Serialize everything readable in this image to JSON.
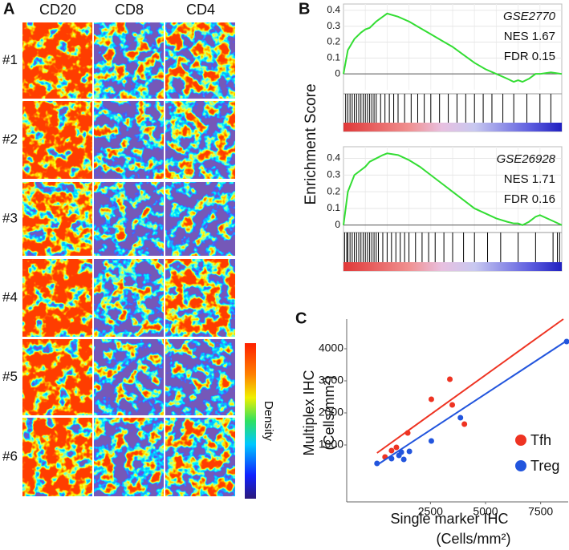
{
  "chart_data": [
    {
      "type": "heatmap",
      "panel": "A",
      "columns": [
        "CD20",
        "CD8",
        "CD4"
      ],
      "rows": [
        "#1",
        "#2",
        "#3",
        "#4",
        "#5",
        "#6"
      ],
      "colorbar_label": "Density"
    },
    {
      "type": "gsea",
      "panel": "B",
      "ylabel": "Enrichment Score",
      "annotations": [
        "GSE2770",
        "NES 1.67",
        "FDR 0.15"
      ],
      "x": [
        0,
        2,
        5,
        8,
        10,
        12,
        15,
        18,
        20,
        25,
        30,
        35,
        40,
        45,
        50,
        55,
        60,
        65,
        70,
        75,
        78,
        80,
        82,
        85,
        88,
        90,
        95,
        100
      ],
      "values": [
        0,
        0.15,
        0.22,
        0.26,
        0.28,
        0.29,
        0.33,
        0.36,
        0.38,
        0.36,
        0.33,
        0.29,
        0.25,
        0.21,
        0.17,
        0.12,
        0.07,
        0.03,
        0.0,
        -0.03,
        -0.05,
        -0.04,
        -0.05,
        -0.03,
        0.0,
        0.0,
        0.01,
        0.0
      ],
      "hits": [
        1,
        2,
        3,
        4,
        5,
        6,
        7,
        8,
        9,
        10,
        11,
        12,
        13,
        14,
        15,
        17,
        19,
        21,
        23,
        25,
        28,
        31,
        34,
        37,
        40,
        44,
        48,
        52,
        56,
        60,
        64,
        68,
        73,
        78,
        84,
        90,
        95
      ],
      "color": "#33dd33",
      "xlim": [
        0,
        100
      ],
      "ylim": [
        -0.1,
        0.44
      ],
      "yticks": [
        0,
        0.1,
        0.2,
        0.3,
        0.4
      ]
    },
    {
      "type": "gsea",
      "annotations": [
        "GSE26928",
        "NES 1.71",
        "FDR 0.16"
      ],
      "x": [
        0,
        2,
        5,
        8,
        10,
        12,
        15,
        18,
        20,
        25,
        30,
        35,
        40,
        45,
        50,
        55,
        60,
        65,
        70,
        75,
        78,
        80,
        82,
        85,
        88,
        90,
        95,
        100
      ],
      "values": [
        0,
        0.2,
        0.3,
        0.33,
        0.35,
        0.38,
        0.4,
        0.42,
        0.43,
        0.42,
        0.39,
        0.35,
        0.3,
        0.25,
        0.2,
        0.15,
        0.1,
        0.07,
        0.04,
        0.02,
        0.01,
        0.01,
        0.0,
        0.02,
        0.05,
        0.06,
        0.03,
        0.0
      ],
      "hits": [
        0.5,
        1.5,
        2,
        3,
        4,
        5,
        6,
        7,
        8,
        9,
        10,
        11,
        12,
        13,
        14,
        15,
        16,
        18,
        20,
        22,
        24,
        26,
        28,
        30,
        33,
        36,
        39,
        42,
        46,
        50,
        55,
        60,
        66,
        72,
        80,
        88,
        96,
        98,
        99
      ],
      "color": "#33dd33",
      "xlim": [
        0,
        100
      ],
      "ylim": [
        -0.03,
        0.47
      ],
      "yticks": [
        0,
        0.1,
        0.2,
        0.3,
        0.4
      ]
    },
    {
      "type": "scatter",
      "panel": "C",
      "xlabel": [
        "Single marker IHC",
        "(Cells/mm²)"
      ],
      "ylabel": [
        "Multiplex IHC",
        "(Cells/mm²)"
      ],
      "xlim": [
        -1300,
        8750
      ],
      "ylim": [
        -775,
        4925
      ],
      "xticks": [
        2500,
        5000,
        7500
      ],
      "yticks": [
        1000,
        2000,
        3000,
        4000
      ],
      "series": [
        {
          "name": "Tfh",
          "color": "#ee3322",
          "x": [
            440,
            735,
            955,
            1470,
            2540,
            3380,
            3490,
            4040
          ],
          "values": [
            625,
            825,
            925,
            1375,
            2425,
            3050,
            2250,
            1650
          ],
          "fit": {
            "x": [
              75,
              8530
            ],
            "values": [
              750,
              4925
            ]
          }
        },
        {
          "name": "Treg",
          "color": "#2255dd",
          "x": [
            75,
            735,
            1070,
            1180,
            1290,
            1545,
            2540,
            3860,
            8680
          ],
          "values": [
            425,
            575,
            675,
            775,
            550,
            800,
            1125,
            1850,
            4225
          ],
          "fit": {
            "x": [
              75,
              8680
            ],
            "values": [
              375,
              4250
            ]
          }
        }
      ]
    }
  ]
}
